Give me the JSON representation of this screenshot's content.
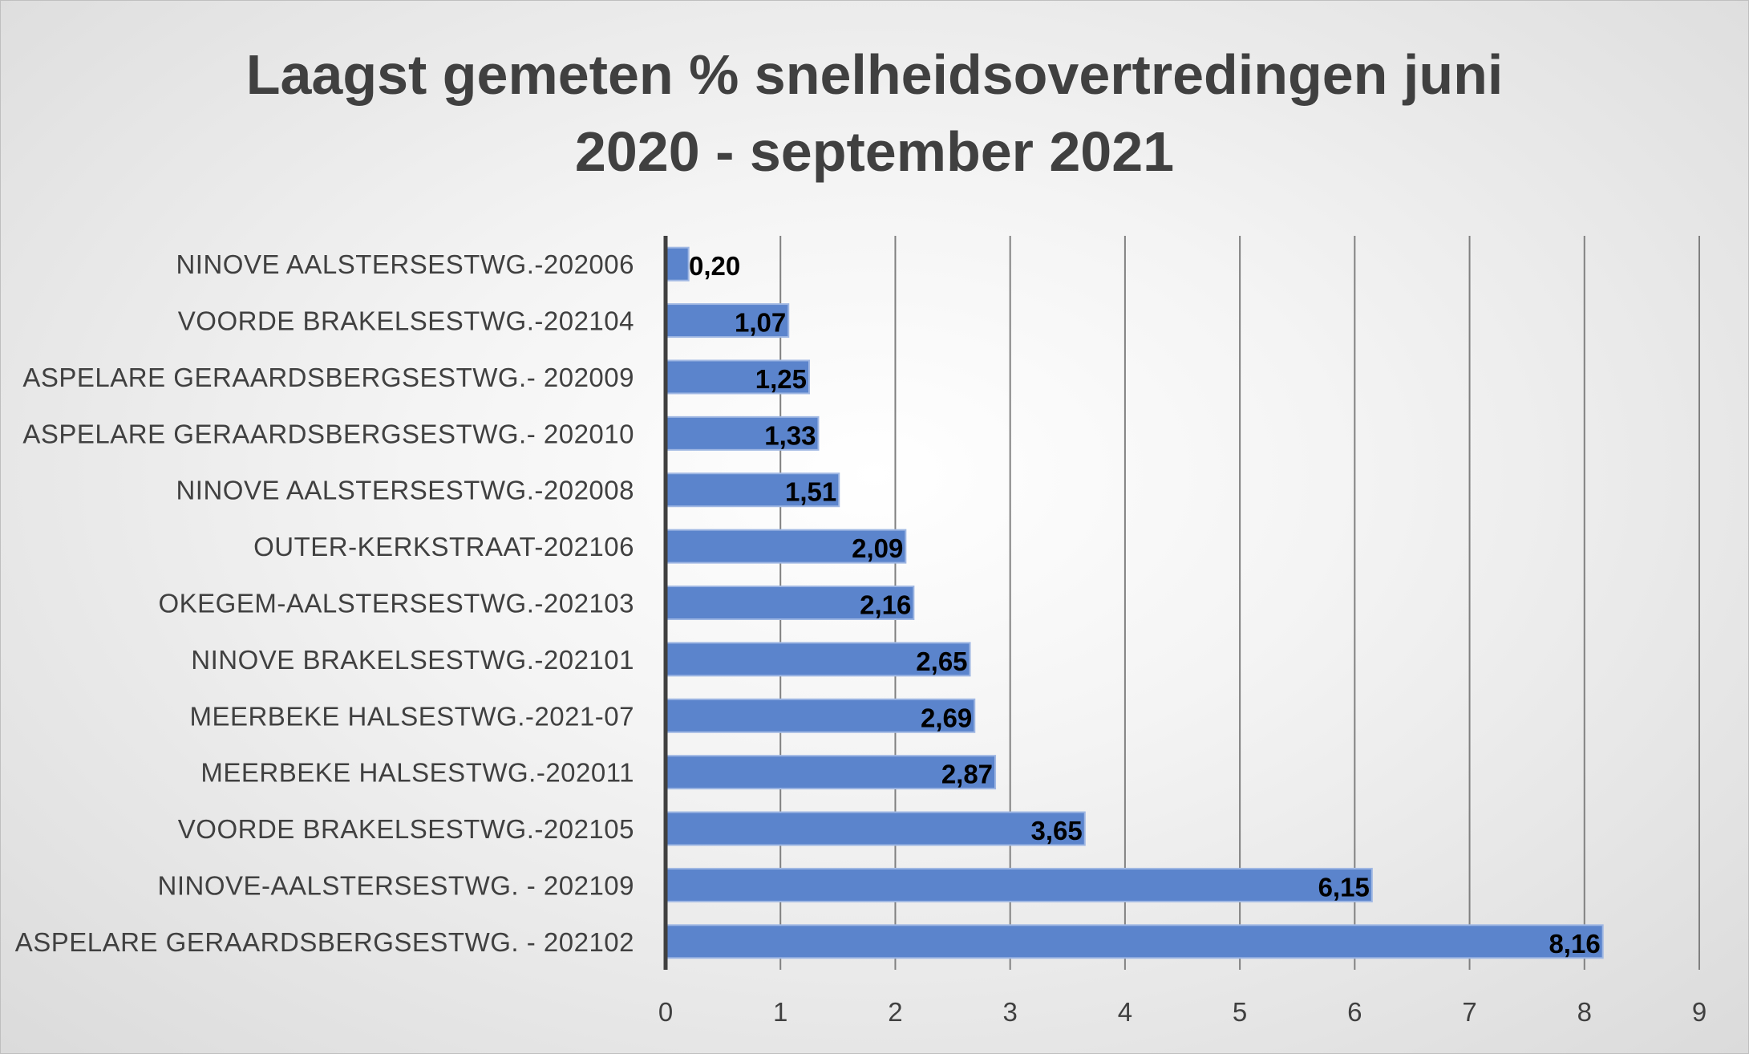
{
  "chart_data": {
    "type": "bar",
    "orientation": "horizontal",
    "title_lines": [
      "Laagst gemeten % snelheidsovertredingen juni",
      "2020 - september 2021"
    ],
    "categories": [
      "NINOVE AALSTERSESTWG.-202006",
      "VOORDE BRAKELSESTWG.-202104",
      "ASPELARE GERAARDSBERGSESTWG.- 202009",
      "ASPELARE GERAARDSBERGSESTWG.- 202010",
      "NINOVE AALSTERSESTWG.-202008",
      "OUTER-KERKSTRAAT-202106",
      "OKEGEM-AALSTERSESTWG.-202103",
      "NINOVE BRAKELSESTWG.-202101",
      "MEERBEKE HALSESTWG.-2021-07",
      "MEERBEKE HALSESTWG.-202011",
      "VOORDE BRAKELSESTWG.-202105",
      "NINOVE-AALSTERSESTWG. - 202109",
      "ASPELARE GERAARDSBERGSESTWG. - 202102"
    ],
    "values": [
      0.2,
      1.07,
      1.25,
      1.33,
      1.51,
      2.09,
      2.16,
      2.65,
      2.69,
      2.87,
      3.65,
      6.15,
      8.16
    ],
    "data_labels": [
      "0,20",
      "1,07",
      "1,25",
      "1,33",
      "1,51",
      "2,09",
      "2,16",
      "2,65",
      "2,69",
      "2,87",
      "3,65",
      "6,15",
      "8,16"
    ],
    "xlim": [
      0,
      9
    ],
    "xticks": [
      0,
      1,
      2,
      3,
      4,
      5,
      6,
      7,
      8,
      9
    ],
    "grid": "vertical",
    "legend": "none",
    "bar_color": "#5b84cc",
    "bar_edge_color": "#9fb7e3",
    "grid_color": "#808080",
    "text_color": "#404040"
  }
}
